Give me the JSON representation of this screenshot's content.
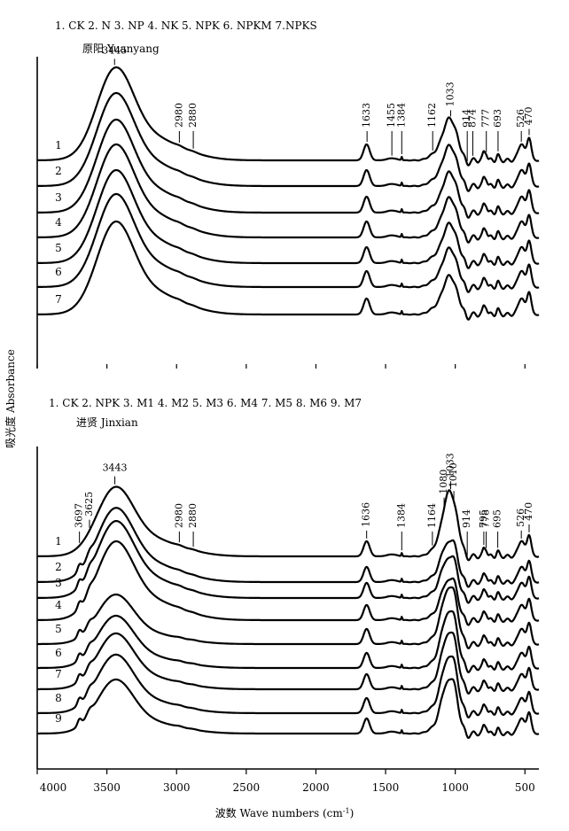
{
  "chart_data": {
    "type": "line",
    "ylabel": "吸光度 Absorbance",
    "xlabel": {
      "prefix": "波数 Wave numbers (cm",
      "sup": "-1",
      "suffix": ")"
    },
    "xlim": [
      4000,
      400
    ],
    "x_ticks": [
      4000,
      3500,
      3000,
      2500,
      2000,
      1500,
      1000,
      500
    ],
    "y_axis_numbered": false,
    "panels": [
      {
        "id": "top",
        "title": "原阳 Yuanyang",
        "legend": "1. CK   2. N   3. NP   4. NK   5. NPK   6. NPKM   7.NPKS",
        "series": [
          {
            "label": "1",
            "oh": 95,
            "tail": 1.0,
            "si": 50,
            "sat": false
          },
          {
            "label": "2",
            "oh": 95,
            "tail": 1.0,
            "si": 48,
            "sat": false
          },
          {
            "label": "3",
            "oh": 95,
            "tail": 1.0,
            "si": 48,
            "sat": false
          },
          {
            "label": "4",
            "oh": 95,
            "tail": 1.0,
            "si": 47,
            "sat": false
          },
          {
            "label": "5",
            "oh": 95,
            "tail": 1.0,
            "si": 47,
            "sat": false
          },
          {
            "label": "6",
            "oh": 95,
            "tail": 1.0,
            "si": 46,
            "sat": false
          },
          {
            "label": "7",
            "oh": 95,
            "tail": 1.0,
            "si": 46,
            "sat": false
          }
        ],
        "peaks": [
          "3445",
          "2980",
          "2880",
          "1633",
          "1455",
          "1384",
          "1162",
          "1033",
          "914",
          "874",
          "777",
          "693",
          "526",
          "470"
        ]
      },
      {
        "id": "bottom",
        "title": "进贤 Jinxian",
        "legend": "1. CK   2. NPK   3. M1   4. M2   5. M3   6. M4   7. M5   8. M6   9. M7",
        "series": [
          {
            "label": "1",
            "oh": 75,
            "tail": 1.0,
            "si": 82,
            "sat": false
          },
          {
            "label": "2",
            "oh": 80,
            "tail": 1.0,
            "si": 45,
            "sat": true
          },
          {
            "label": "3",
            "oh": 83,
            "tail": 1.0,
            "si": 45,
            "sat": true
          },
          {
            "label": "4",
            "oh": 85,
            "tail": 1.0,
            "si": 45,
            "sat": true
          },
          {
            "label": "5",
            "oh": 55,
            "tail": 0.8,
            "si": 65,
            "sat": true
          },
          {
            "label": "6",
            "oh": 58,
            "tail": 0.8,
            "si": 65,
            "sat": true
          },
          {
            "label": "7",
            "oh": 62,
            "tail": 0.8,
            "si": 65,
            "sat": true
          },
          {
            "label": "8",
            "oh": 65,
            "tail": 0.8,
            "si": 65,
            "sat": true
          },
          {
            "label": "9",
            "oh": 60,
            "tail": 0.8,
            "si": 62,
            "sat": true
          }
        ],
        "peaks": [
          "3697",
          "3625",
          "3443",
          "2980",
          "2880",
          "1636",
          "1384",
          "1164",
          "1080",
          "1033",
          "1010",
          "914",
          "795",
          "778",
          "695",
          "526",
          "470"
        ]
      }
    ]
  }
}
